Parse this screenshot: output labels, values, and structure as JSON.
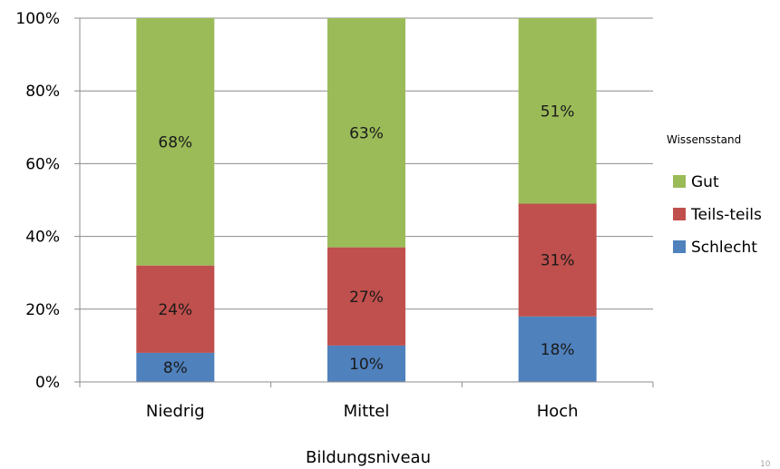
{
  "chart_data": {
    "type": "bar",
    "stacked": true,
    "normalized": true,
    "categories": [
      "Niedrig",
      "Mittel",
      "Hoch"
    ],
    "series": [
      {
        "name": "Schlecht",
        "values": [
          8,
          10,
          18
        ],
        "labels": [
          "8%",
          "10%",
          "18%"
        ],
        "color": "#4f81bd"
      },
      {
        "name": "Teils-teils",
        "values": [
          24,
          27,
          31
        ],
        "labels": [
          "24%",
          "27%",
          "31%"
        ],
        "color": "#c0504d"
      },
      {
        "name": "Gut",
        "values": [
          68,
          63,
          51
        ],
        "labels": [
          "68%",
          "63%",
          "51%"
        ],
        "color": "#9bbb59"
      }
    ],
    "xlabel": "Bildungsniveau",
    "ylabel": "",
    "ylim": [
      0,
      100
    ],
    "yticks": [
      "0%",
      "20%",
      "40%",
      "60%",
      "80%",
      "100%"
    ],
    "legend": {
      "title": "Wissensstand",
      "placement": "right",
      "order": [
        "Gut",
        "Teils-teils",
        "Schlecht"
      ]
    },
    "grid": true
  },
  "page_number": "10"
}
